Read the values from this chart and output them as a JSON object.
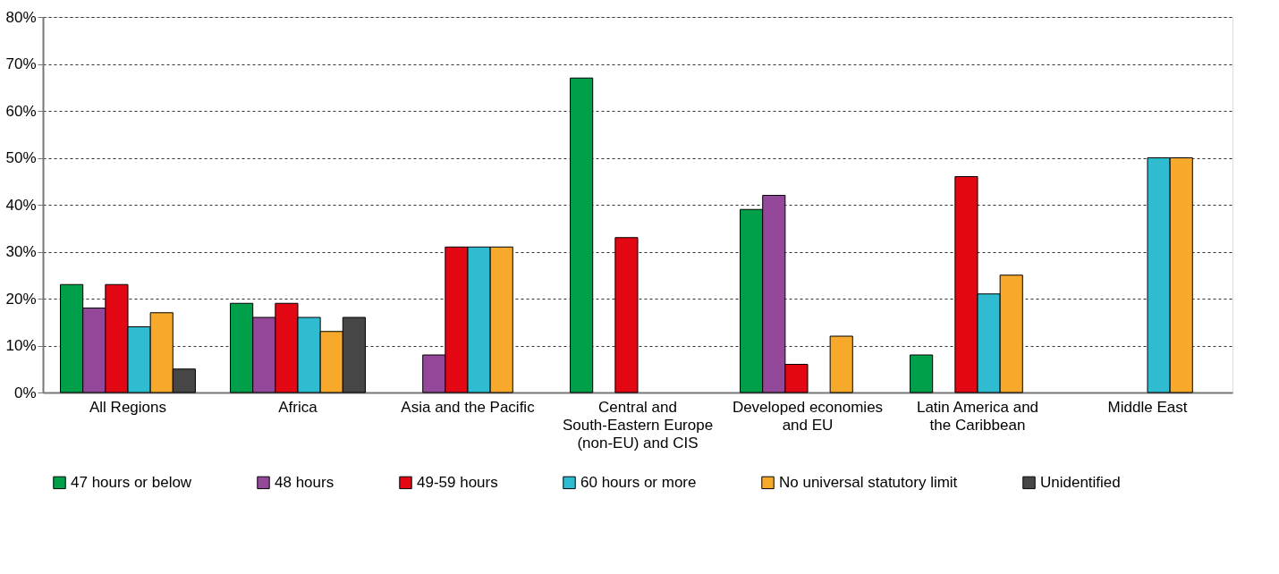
{
  "chart_data": {
    "type": "bar",
    "categories": [
      "All Regions",
      "Africa",
      "Asia and the Pacific",
      "Central and South-Eastern Europe (non-EU) and CIS",
      "Developed economies and EU",
      "Latin America and the Caribbean",
      "Middle East"
    ],
    "series": [
      {
        "name": "47 hours or below",
        "color": "#00a04a",
        "values": [
          23,
          19,
          null,
          67,
          39,
          8,
          null
        ]
      },
      {
        "name": "48 hours",
        "color": "#93489a",
        "values": [
          18,
          16,
          8,
          null,
          42,
          null,
          null
        ]
      },
      {
        "name": "49-59 hours",
        "color": "#e30613",
        "values": [
          23,
          19,
          31,
          33,
          6,
          46,
          null
        ]
      },
      {
        "name": "60 hours or more",
        "color": "#2fbcd0",
        "values": [
          14,
          16,
          31,
          null,
          null,
          21,
          50
        ]
      },
      {
        "name": "No universal statutory limit",
        "color": "#f7a92c",
        "values": [
          17,
          13,
          31,
          null,
          12,
          25,
          50
        ]
      },
      {
        "name": "Unidentified",
        "color": "#464646",
        "values": [
          5,
          16,
          null,
          null,
          null,
          null,
          null
        ]
      }
    ],
    "ylim": [
      0,
      80
    ],
    "yticks": [
      {
        "value": 0,
        "label": "0%"
      },
      {
        "value": 10,
        "label": "10%"
      },
      {
        "value": 20,
        "label": "20%"
      },
      {
        "value": 30,
        "label": "30%"
      },
      {
        "value": 40,
        "label": "40%"
      },
      {
        "value": 50,
        "label": "50%"
      },
      {
        "value": 60,
        "label": "60%"
      },
      {
        "value": 70,
        "label": "70%"
      },
      {
        "value": 80,
        "label": "80%"
      }
    ],
    "grid": "y",
    "legend": "bottom"
  }
}
